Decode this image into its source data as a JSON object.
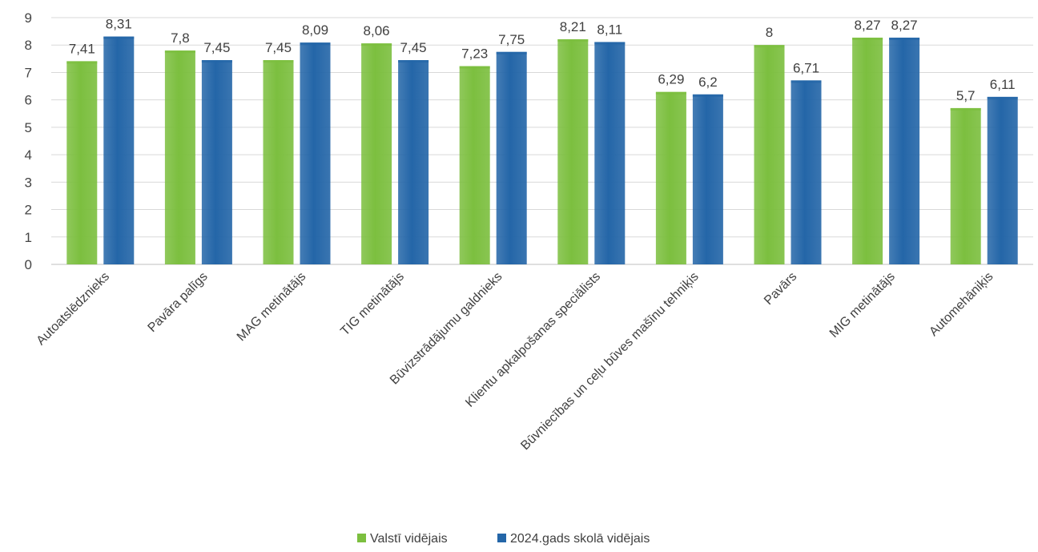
{
  "chart_data": {
    "type": "bar",
    "title": "",
    "xlabel": "",
    "ylabel": "",
    "ylim": [
      0,
      9
    ],
    "yticks": [
      0,
      1,
      2,
      3,
      4,
      5,
      6,
      7,
      8,
      9
    ],
    "grid": true,
    "legend_position": "bottom",
    "categories": [
      "Autoatslēdznieks",
      "Pavāra palīgs",
      "MAG metinātājs",
      "TIG metinātājs",
      "Būvizstrādājumu galdnieks",
      "Klientu apkalpošanas speciālists",
      "Būvniecības un ceļu būves mašīnu tehniķis",
      "Pavārs",
      "MIG metinātājs",
      "Automehāniķis"
    ],
    "series": [
      {
        "name": "Valstī vidējais",
        "color": "#7cbf3f",
        "values": [
          7.41,
          7.8,
          7.45,
          8.06,
          7.23,
          8.21,
          6.29,
          8,
          8.27,
          5.7
        ],
        "labels": [
          "7,41",
          "7,8",
          "7,45",
          "8,06",
          "7,23",
          "8,21",
          "6,29",
          "8",
          "8,27",
          "5,7"
        ]
      },
      {
        "name": "2024.gads skolā vidējais",
        "color": "#2466a8",
        "values": [
          8.31,
          7.45,
          8.09,
          7.45,
          7.75,
          8.11,
          6.2,
          6.71,
          8.27,
          6.11
        ],
        "labels": [
          "8,31",
          "7,45",
          "8,09",
          "7,45",
          "7,75",
          "8,11",
          "6,2",
          "6,71",
          "8,27",
          "6,11"
        ]
      }
    ]
  }
}
